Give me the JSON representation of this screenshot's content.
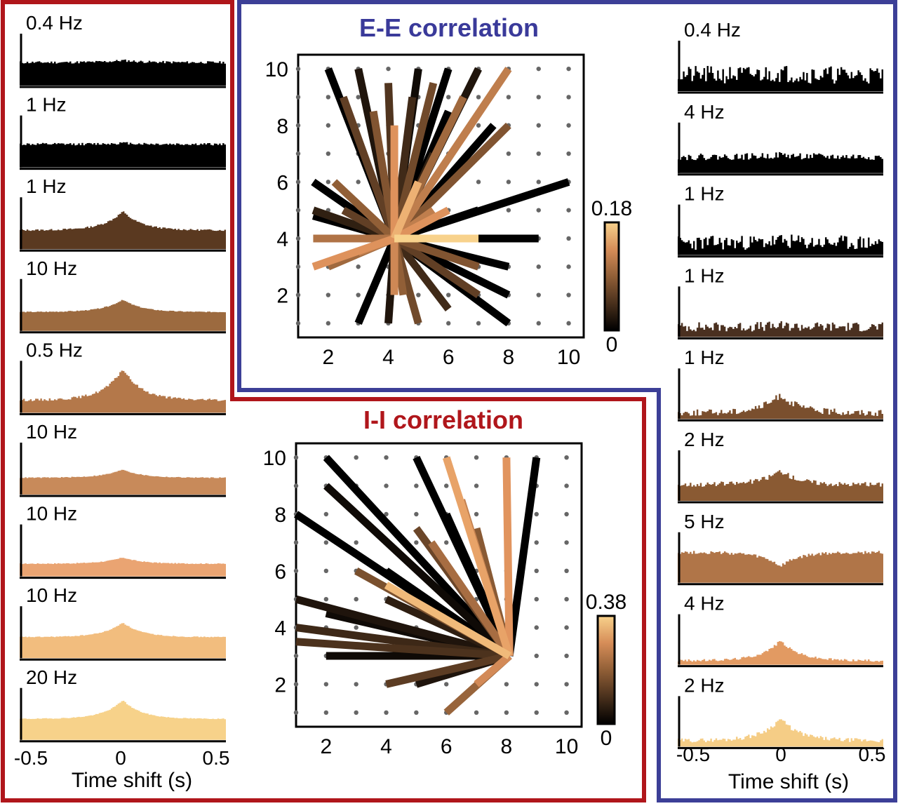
{
  "colors": {
    "red_frame": "#b0161b",
    "blue_frame": "#3c3f97",
    "ee_title": "#3a3a9a",
    "ii_title": "#b0161b",
    "grid_dot": "#666666",
    "axis": "#000000"
  },
  "left_panel": {
    "xlabel": "Time shift (s)",
    "xticks": [
      "-0.5",
      "0",
      "0.5"
    ],
    "histograms": [
      {
        "label": "0.4 Hz",
        "color": "#000000",
        "peak": 0.05,
        "base": 0.55,
        "noise": 0.03,
        "seed": 11
      },
      {
        "label": "1 Hz",
        "color": "#000000",
        "peak": 0.03,
        "base": 0.55,
        "noise": 0.03,
        "seed": 12
      },
      {
        "label": "1 Hz",
        "color": "#5a3920",
        "peak": 0.45,
        "base": 0.45,
        "noise": 0.02,
        "seed": 13
      },
      {
        "label": "10 Hz",
        "color": "#9c6a3f",
        "peak": 0.3,
        "base": 0.45,
        "noise": 0.01,
        "seed": 14
      },
      {
        "label": "0.5 Hz",
        "color": "#b4784a",
        "peak": 0.75,
        "base": 0.3,
        "noise": 0.03,
        "seed": 15
      },
      {
        "label": "10  Hz",
        "color": "#c88a5a",
        "peak": 0.2,
        "base": 0.4,
        "noise": 0.01,
        "seed": 16
      },
      {
        "label": "10 Hz",
        "color": "#eaa472",
        "peak": 0.15,
        "base": 0.3,
        "noise": 0.01,
        "seed": 17
      },
      {
        "label": "10 Hz",
        "color": "#f2bd7e",
        "peak": 0.35,
        "base": 0.5,
        "noise": 0.01,
        "seed": 18
      },
      {
        "label": "20 Hz",
        "color": "#f7d28a",
        "peak": 0.45,
        "base": 0.5,
        "noise": 0.01,
        "seed": 19
      }
    ]
  },
  "right_panel": {
    "xlabel": "Time shift (s)",
    "xticks": [
      "-0.5",
      "0",
      "0.5"
    ],
    "histograms": [
      {
        "label": "0.4 Hz",
        "color": "#000000",
        "peak": 0.05,
        "base": 0.4,
        "noise": 0.22,
        "seed": 21
      },
      {
        "label": "4 Hz",
        "color": "#000000",
        "peak": 0.05,
        "base": 0.4,
        "noise": 0.08,
        "seed": 22
      },
      {
        "label": "1 Hz",
        "color": "#000000",
        "peak": 0.05,
        "base": 0.3,
        "noise": 0.18,
        "seed": 23
      },
      {
        "label": "1 Hz",
        "color": "#4a3020",
        "peak": 0.02,
        "base": 0.25,
        "noise": 0.12,
        "seed": 24
      },
      {
        "label": "1 Hz",
        "color": "#7a4f2e",
        "peak": 0.45,
        "base": 0.15,
        "noise": 0.08,
        "seed": 25
      },
      {
        "label": "2 Hz",
        "color": "#8a5a33",
        "peak": 0.35,
        "base": 0.4,
        "noise": 0.06,
        "seed": 26
      },
      {
        "label": "5 Hz",
        "color": "#b07548",
        "peak": -0.35,
        "base": 0.75,
        "noise": 0.04,
        "seed": 27
      },
      {
        "label": "4 Hz",
        "color": "#e29a62",
        "peak": 0.5,
        "base": 0.1,
        "noise": 0.03,
        "seed": 28
      },
      {
        "label": "2 Hz",
        "color": "#f5cd86",
        "peak": 0.55,
        "base": 0.15,
        "noise": 0.05,
        "seed": 29
      }
    ]
  },
  "chart_data": [
    {
      "type": "network",
      "title": "E-E correlation",
      "xticks": [
        "2",
        "4",
        "6",
        "8",
        "10"
      ],
      "yticks": [
        "2",
        "4",
        "6",
        "8",
        "10"
      ],
      "xlim": [
        1,
        10.5
      ],
      "ylim": [
        0.5,
        10.5
      ],
      "colorbar": {
        "max": "0.18",
        "min": "0"
      },
      "center": [
        4.2,
        4
      ],
      "edges": [
        {
          "to": [
            2,
            10
          ],
          "value": 0.0
        },
        {
          "to": [
            2.5,
            9
          ],
          "value": 0.06
        },
        {
          "to": [
            3,
            10
          ],
          "value": 0.02
        },
        {
          "to": [
            3.5,
            8.5
          ],
          "value": 0.08
        },
        {
          "to": [
            4,
            9.5
          ],
          "value": 0.05
        },
        {
          "to": [
            4.2,
            8
          ],
          "value": 0.14
        },
        {
          "to": [
            5,
            10
          ],
          "value": 0.01
        },
        {
          "to": [
            5.5,
            9.5
          ],
          "value": 0.07
        },
        {
          "to": [
            6,
            10
          ],
          "value": 0.0
        },
        {
          "to": [
            6.5,
            9
          ],
          "value": 0.1
        },
        {
          "to": [
            7,
            10
          ],
          "value": 0.02
        },
        {
          "to": [
            7.5,
            8
          ],
          "value": 0.0
        },
        {
          "to": [
            8,
            10
          ],
          "value": 0.12
        },
        {
          "to": [
            8,
            8
          ],
          "value": 0.08
        },
        {
          "to": [
            5.5,
            7
          ],
          "value": 0.03
        },
        {
          "to": [
            6,
            8.5
          ],
          "value": 0.0
        },
        {
          "to": [
            4.8,
            9
          ],
          "value": 0.04
        },
        {
          "to": [
            1.5,
            6
          ],
          "value": 0.0
        },
        {
          "to": [
            1.5,
            5
          ],
          "value": 0.03
        },
        {
          "to": [
            1.5,
            4.8
          ],
          "value": 0.0
        },
        {
          "to": [
            2.5,
            5
          ],
          "value": 0.06
        },
        {
          "to": [
            2.2,
            6
          ],
          "value": 0.09
        },
        {
          "to": [
            1.5,
            4
          ],
          "value": 0.11
        },
        {
          "to": [
            1.5,
            3
          ],
          "value": 0.14
        },
        {
          "to": [
            2,
            3
          ],
          "value": 0.1
        },
        {
          "to": [
            3,
            3.5
          ],
          "value": 0.12
        },
        {
          "to": [
            3,
            1
          ],
          "value": 0.0
        },
        {
          "to": [
            4,
            1
          ],
          "value": 0.02
        },
        {
          "to": [
            4.2,
            2
          ],
          "value": 0.13
        },
        {
          "to": [
            4.5,
            2
          ],
          "value": 0.09
        },
        {
          "to": [
            5,
            1
          ],
          "value": 0.07
        },
        {
          "to": [
            6,
            1.5
          ],
          "value": 0.04
        },
        {
          "to": [
            7,
            2
          ],
          "value": 0.06
        },
        {
          "to": [
            8,
            1
          ],
          "value": 0.0
        },
        {
          "to": [
            8,
            2
          ],
          "value": 0.0
        },
        {
          "to": [
            8,
            3
          ],
          "value": 0.0
        },
        {
          "to": [
            7,
            3
          ],
          "value": 0.08
        },
        {
          "to": [
            7,
            4
          ],
          "value": 0.18
        },
        {
          "to": [
            9,
            4
          ],
          "value": 0.0
        },
        {
          "to": [
            7,
            5
          ],
          "value": 0.0
        },
        {
          "to": [
            10,
            6
          ],
          "value": 0.0
        },
        {
          "to": [
            6,
            5
          ],
          "value": 0.14
        },
        {
          "to": [
            5,
            6
          ],
          "value": 0.16
        },
        {
          "to": [
            5.5,
            5
          ],
          "value": 0.12
        }
      ]
    },
    {
      "type": "network",
      "title": "I-I correlation",
      "xticks": [
        "2",
        "4",
        "6",
        "8",
        "10"
      ],
      "yticks": [
        "2",
        "4",
        "6",
        "8",
        "10"
      ],
      "xlim": [
        1,
        10.5
      ],
      "ylim": [
        0.5,
        10.5
      ],
      "colorbar": {
        "max": "0.38",
        "min": "0"
      },
      "center": [
        8.1,
        3
      ],
      "edges": [
        {
          "to": [
            2,
            10
          ],
          "value": 0.0
        },
        {
          "to": [
            2,
            9
          ],
          "value": 0.02
        },
        {
          "to": [
            1,
            8
          ],
          "value": 0.0
        },
        {
          "to": [
            5,
            10
          ],
          "value": 0.0
        },
        {
          "to": [
            6,
            10
          ],
          "value": 0.32
        },
        {
          "to": [
            8,
            10
          ],
          "value": 0.3
        },
        {
          "to": [
            9,
            10
          ],
          "value": 0.0
        },
        {
          "to": [
            7,
            7.5
          ],
          "value": 0.18
        },
        {
          "to": [
            5,
            7.5
          ],
          "value": 0.14
        },
        {
          "to": [
            4,
            6
          ],
          "value": 0.0
        },
        {
          "to": [
            3,
            6
          ],
          "value": 0.16
        },
        {
          "to": [
            4,
            5
          ],
          "value": 0.06
        },
        {
          "to": [
            4,
            5.5
          ],
          "value": 0.35
        },
        {
          "to": [
            1,
            5
          ],
          "value": 0.04
        },
        {
          "to": [
            1,
            4
          ],
          "value": 0.08
        },
        {
          "to": [
            2,
            4.5
          ],
          "value": 0.02
        },
        {
          "to": [
            1,
            3.5
          ],
          "value": 0.1
        },
        {
          "to": [
            2,
            3
          ],
          "value": 0.02
        },
        {
          "to": [
            4,
            2
          ],
          "value": 0.12
        },
        {
          "to": [
            5,
            2
          ],
          "value": 0.04
        },
        {
          "to": [
            6,
            1
          ],
          "value": 0.2
        },
        {
          "to": [
            7,
            2
          ],
          "value": 0.28
        },
        {
          "to": [
            6,
            8
          ],
          "value": 0.0
        },
        {
          "to": [
            6.5,
            8.5
          ],
          "value": 0.26
        },
        {
          "to": [
            5.5,
            7
          ],
          "value": 0.22
        }
      ]
    }
  ]
}
